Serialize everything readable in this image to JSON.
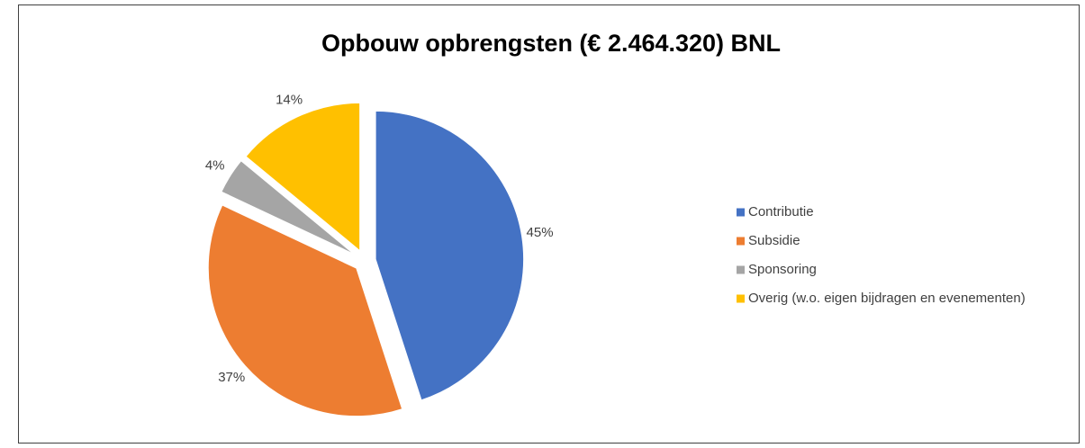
{
  "chart_data": {
    "type": "pie",
    "title": "Opbouw opbrengsten (€ 2.464.320) BNL",
    "categories": [
      "Contributie",
      "Subsidie",
      "Sponsoring",
      "Overig (w.o. eigen bijdragen en evenementen)"
    ],
    "values": [
      45,
      37,
      4,
      14
    ],
    "value_labels": [
      "45%",
      "37%",
      "4%",
      "14%"
    ],
    "colors": [
      "#4472c4",
      "#ed7d31",
      "#a5a5a5",
      "#ffc000"
    ],
    "legend": "right"
  }
}
